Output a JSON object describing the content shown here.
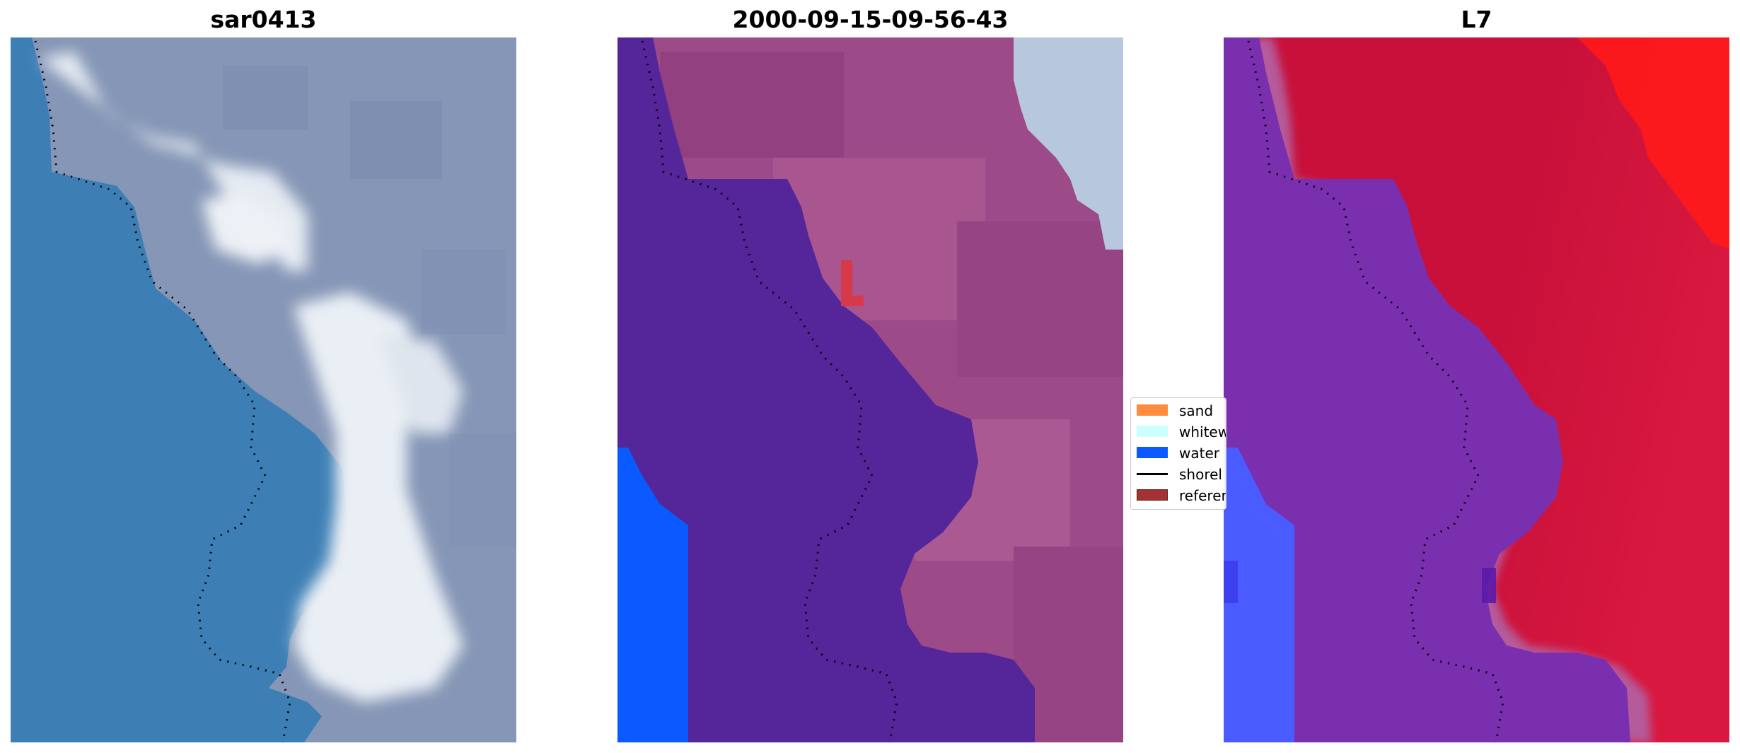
{
  "panels": [
    {
      "title": "sar0413",
      "view": "rgb"
    },
    {
      "title": "2000-09-15-09-56-43",
      "view": "classification"
    },
    {
      "title": "L7",
      "view": "index"
    }
  ],
  "legend": {
    "items": [
      {
        "label": "sand",
        "kind": "patch",
        "color": "#ff8c3f"
      },
      {
        "label": "whitew",
        "kind": "patch",
        "color": "#ccffff"
      },
      {
        "label": "water",
        "kind": "patch",
        "color": "#0a5aff"
      },
      {
        "label": "shorel",
        "kind": "line",
        "color": "#000000"
      },
      {
        "label": "referer",
        "kind": "patch",
        "color": "#a33333"
      }
    ]
  },
  "colors": {
    "ocean": "#3d7fb5",
    "surf": "#e8edf3",
    "cloud": "#8fa0c0",
    "class_water_body": "#55259a",
    "class_water": "#0a5aff",
    "class_land": "#9d4a88",
    "class_reference": "#d63a4a",
    "class_whitewater": "#b7c7dd",
    "index_low": "#7a2fae",
    "index_high": "#c8103a",
    "index_blue": "#4a5cff",
    "index_red": "#ff1a1a",
    "shoreline": "#000000"
  }
}
